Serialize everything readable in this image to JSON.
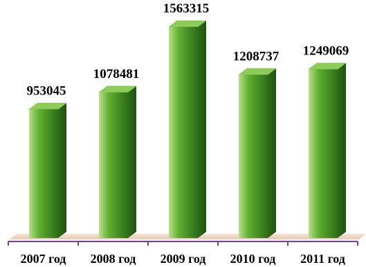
{
  "chart_data": {
    "type": "bar",
    "categories": [
      "2007 год",
      "2008 год",
      "2009 год",
      "2010 год",
      "2011 год"
    ],
    "values": [
      953045,
      1078481,
      1563315,
      1208737,
      1249069
    ],
    "value_labels": [
      "953045",
      "1078481",
      "1563315",
      "1208737",
      "1249069"
    ],
    "ylim": [
      0,
      1563315
    ],
    "grid": false,
    "legend": "none",
    "bar_style": "3d-column",
    "colors": {
      "bar_light": "#b8e08a",
      "bar_mid": "#5fae2f",
      "bar_dark": "#2d6e18",
      "side_dark": "#1f5210",
      "top": "#8fcb5a",
      "floor": "#e8c9b3",
      "axis": "#7b3aa0"
    }
  }
}
